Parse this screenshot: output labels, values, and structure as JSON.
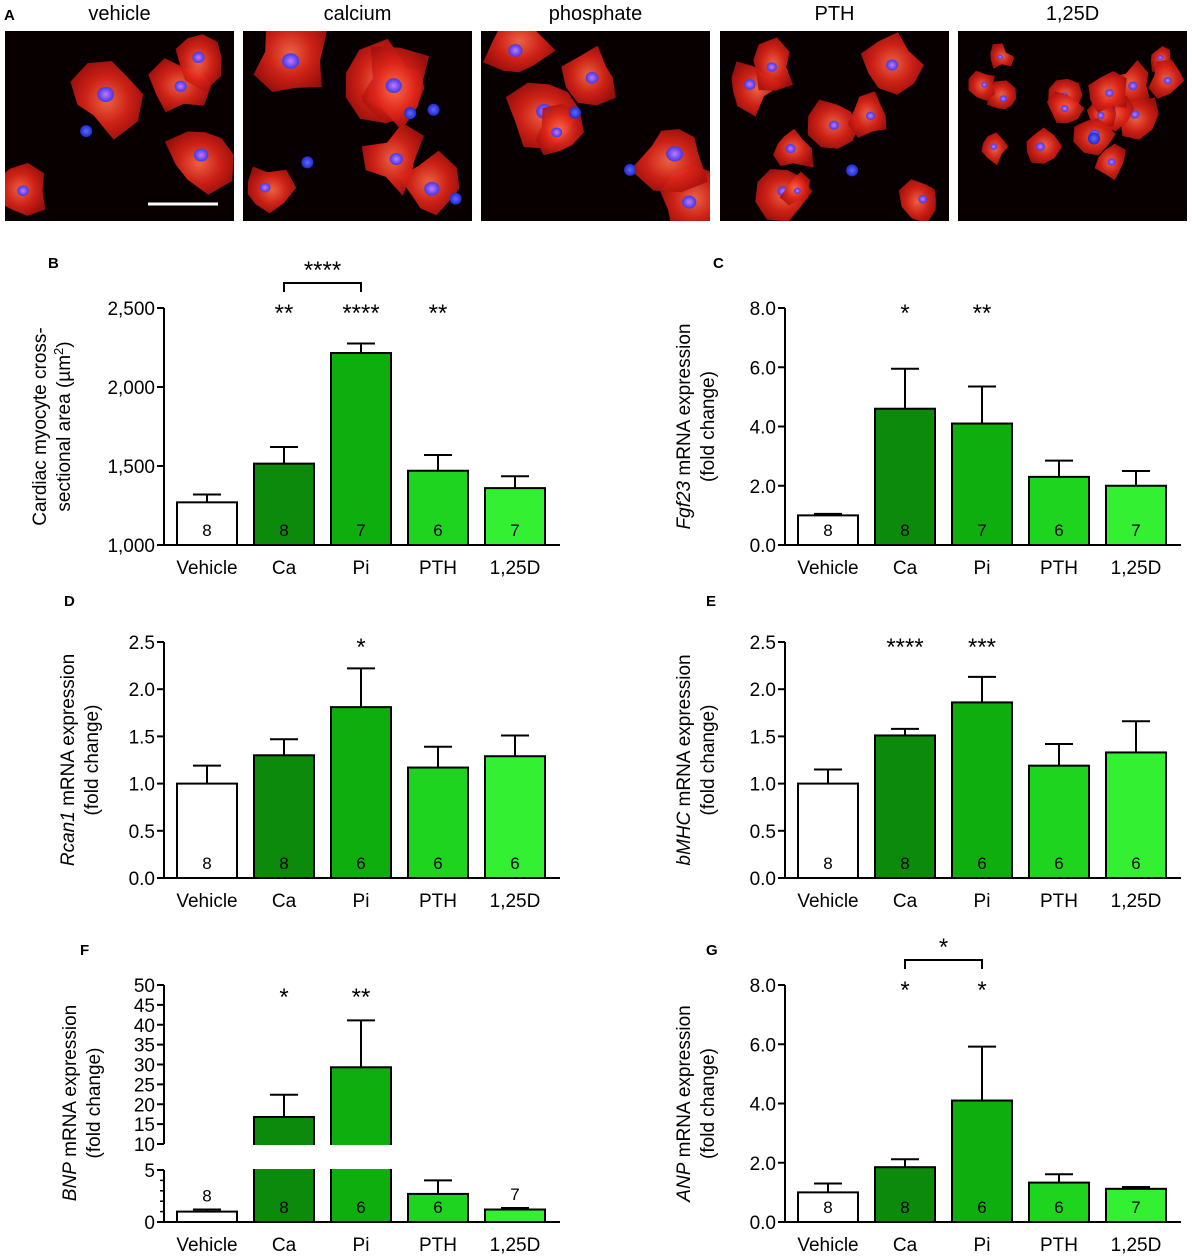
{
  "micrographs": {
    "panel_label": "A",
    "items": [
      {
        "label": "vehicle",
        "type": "vehicle"
      },
      {
        "label": "calcium",
        "type": "calcium"
      },
      {
        "label": "phosphate",
        "type": "phosphate"
      },
      {
        "label": "PTH",
        "type": "pth"
      },
      {
        "label": "1,25D",
        "type": "d125"
      }
    ],
    "colors": {
      "background": "#080000",
      "cytoplasm": "#d8201a",
      "nucleus": "#3a32e0",
      "scale_bar": "#ffffff"
    }
  },
  "colors": {
    "bars": [
      "#ffffff",
      "#0b8a0b",
      "#0fae0f",
      "#1fd41f",
      "#33f033"
    ],
    "stroke": "#000000"
  },
  "chart_data": [
    {
      "panel": "B",
      "type": "bar",
      "categories": [
        "Vehicle",
        "Ca",
        "Pi",
        "PTH",
        "1,25D"
      ],
      "values": [
        1270,
        1515,
        2215,
        1470,
        1360
      ],
      "errors": [
        50,
        105,
        60,
        100,
        75
      ],
      "n": [
        "8",
        "8",
        "7",
        "6",
        "7"
      ],
      "significance": [
        "",
        "**",
        "****",
        "**",
        ""
      ],
      "comparisons": [
        {
          "from": 1,
          "to": 2,
          "label": "****"
        }
      ],
      "ylabel_lines": [
        {
          "parts": [
            {
              "text": "Cardiac myocyte cross-"
            }
          ]
        },
        {
          "parts": [
            {
              "text": "sectional area (µm"
            },
            {
              "text": "2",
              "sup": true
            },
            {
              "text": ")"
            }
          ]
        }
      ],
      "ylim": [
        1000,
        2500
      ],
      "ticks": [
        1000,
        1500,
        2000,
        2500
      ],
      "tick_labels": [
        "1,000",
        "1,500",
        "2,000",
        "2,500"
      ]
    },
    {
      "panel": "C",
      "type": "bar",
      "categories": [
        "Vehicle",
        "Ca",
        "Pi",
        "PTH",
        "1,25D"
      ],
      "values": [
        1.0,
        4.6,
        4.1,
        2.3,
        2.0
      ],
      "errors": [
        0.05,
        1.35,
        1.25,
        0.55,
        0.5
      ],
      "n": [
        "8",
        "8",
        "7",
        "6",
        "7"
      ],
      "significance": [
        "",
        "*",
        "**",
        "",
        ""
      ],
      "comparisons": [],
      "ylabel_lines": [
        {
          "parts": [
            {
              "text": "Fgf23",
              "italic": true
            },
            {
              "text": " mRNA expression"
            }
          ]
        },
        {
          "parts": [
            {
              "text": "(fold change)"
            }
          ]
        }
      ],
      "ylim": [
        0,
        8
      ],
      "ticks": [
        0,
        2,
        4,
        6,
        8
      ],
      "tick_labels": [
        "0.0",
        "2.0",
        "4.0",
        "6.0",
        "8.0"
      ]
    },
    {
      "panel": "D",
      "type": "bar",
      "categories": [
        "Vehicle",
        "Ca",
        "Pi",
        "PTH",
        "1,25D"
      ],
      "values": [
        1.0,
        1.3,
        1.81,
        1.17,
        1.29
      ],
      "errors": [
        0.19,
        0.17,
        0.41,
        0.22,
        0.22
      ],
      "n": [
        "8",
        "8",
        "6",
        "6",
        "6"
      ],
      "significance": [
        "",
        "",
        "*",
        "",
        ""
      ],
      "comparisons": [],
      "ylabel_lines": [
        {
          "parts": [
            {
              "text": "Rcan1",
              "italic": true
            },
            {
              "text": " mRNA expression"
            }
          ]
        },
        {
          "parts": [
            {
              "text": "(fold change)"
            }
          ]
        }
      ],
      "ylim": [
        0,
        2.5
      ],
      "ticks": [
        0,
        0.5,
        1,
        1.5,
        2,
        2.5
      ],
      "tick_labels": [
        "0.0",
        "0.5",
        "1.0",
        "1.5",
        "2.0",
        "2.5"
      ]
    },
    {
      "panel": "E",
      "type": "bar",
      "categories": [
        "Vehicle",
        "Ca",
        "Pi",
        "PTH",
        "1,25D"
      ],
      "values": [
        1.0,
        1.51,
        1.86,
        1.19,
        1.33
      ],
      "errors": [
        0.15,
        0.07,
        0.27,
        0.23,
        0.33
      ],
      "n": [
        "8",
        "8",
        "6",
        "6",
        "6"
      ],
      "significance": [
        "",
        "****",
        "***",
        "",
        ""
      ],
      "comparisons": [],
      "ylabel_lines": [
        {
          "parts": [
            {
              "text": "bMHC",
              "italic": true
            },
            {
              "text": " mRNA expression"
            }
          ]
        },
        {
          "parts": [
            {
              "text": "(fold change)"
            }
          ]
        }
      ],
      "ylim": [
        0,
        2.5
      ],
      "ticks": [
        0,
        0.5,
        1,
        1.5,
        2,
        2.5
      ],
      "tick_labels": [
        "0.0",
        "0.5",
        "1.0",
        "1.5",
        "2.0",
        "2.5"
      ]
    },
    {
      "panel": "F",
      "type": "bar",
      "broken_axis": true,
      "categories": [
        "Vehicle",
        "Ca",
        "Pi",
        "PTH",
        "1,25D"
      ],
      "values": [
        1.0,
        16.8,
        29.3,
        2.7,
        1.2
      ],
      "errors": [
        0.2,
        5.6,
        11.8,
        1.3,
        0.15
      ],
      "n": [
        "8",
        "8",
        "6",
        "6",
        "7"
      ],
      "n_above": [
        true,
        false,
        false,
        false,
        true
      ],
      "significance": [
        "",
        "*",
        "**",
        "",
        ""
      ],
      "comparisons": [],
      "ylabel_lines": [
        {
          "parts": [
            {
              "text": "BNP",
              "italic": true
            },
            {
              "text": " mRNA expression"
            }
          ]
        },
        {
          "parts": [
            {
              "text": "(fold change)"
            }
          ]
        }
      ],
      "segments": [
        {
          "range": [
            0,
            5
          ],
          "ticks": [
            0,
            5
          ]
        },
        {
          "range": [
            10,
            50
          ],
          "ticks": [
            10,
            15,
            20,
            25,
            30,
            35,
            40,
            45,
            50
          ]
        }
      ]
    },
    {
      "panel": "G",
      "type": "bar",
      "categories": [
        "Vehicle",
        "Ca",
        "Pi",
        "PTH",
        "1,25D"
      ],
      "values": [
        1.0,
        1.85,
        4.1,
        1.33,
        1.12
      ],
      "errors": [
        0.3,
        0.27,
        1.82,
        0.28,
        0.06
      ],
      "n": [
        "8",
        "8",
        "6",
        "6",
        "7"
      ],
      "significance": [
        "",
        "*",
        "*",
        "",
        ""
      ],
      "comparisons": [
        {
          "from": 1,
          "to": 2,
          "label": "*"
        }
      ],
      "ylabel_lines": [
        {
          "parts": [
            {
              "text": "ANP",
              "italic": true
            },
            {
              "text": " mRNA expression"
            }
          ]
        },
        {
          "parts": [
            {
              "text": "(fold change)"
            }
          ]
        }
      ],
      "ylim": [
        0,
        8
      ],
      "ticks": [
        0,
        2,
        4,
        6,
        8
      ],
      "tick_labels": [
        "0.0",
        "2.0",
        "4.0",
        "6.0",
        "8.0"
      ]
    }
  ]
}
